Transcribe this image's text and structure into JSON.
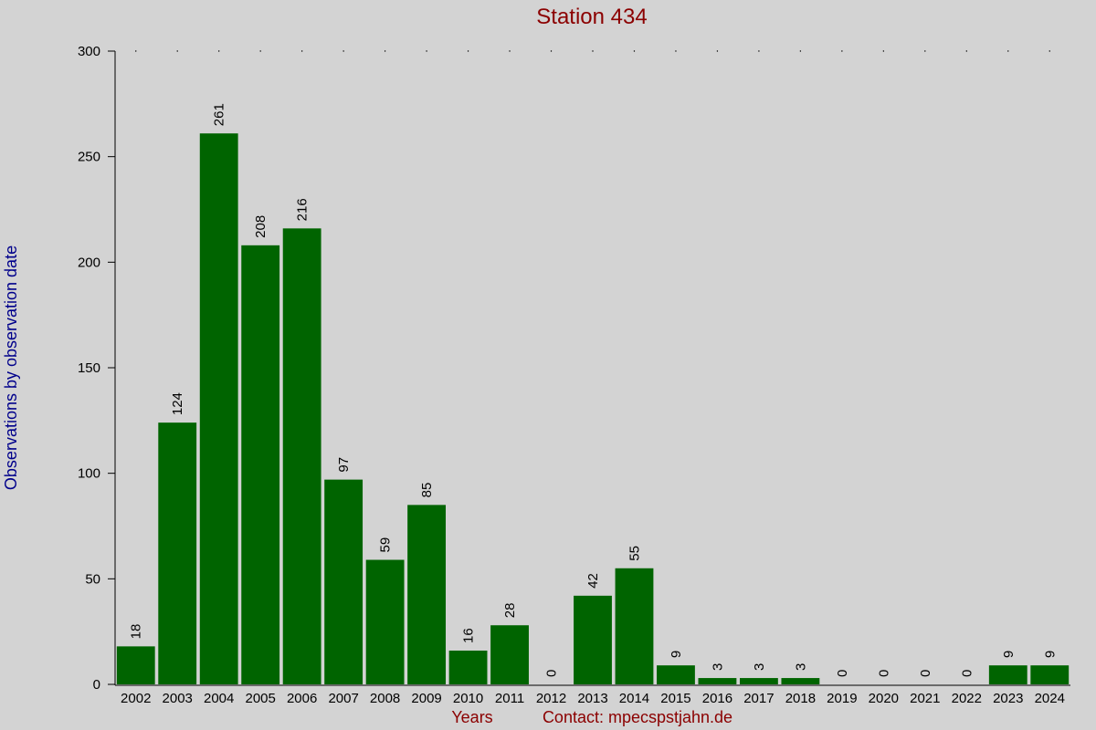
{
  "chart_data": {
    "type": "bar",
    "title": "Station 434",
    "xlabel": "Years",
    "annotation": "Contact: mpecspstjahn.de",
    "ylabel": "Observations by observation date",
    "categories": [
      "2002",
      "2003",
      "2004",
      "2005",
      "2006",
      "2007",
      "2008",
      "2009",
      "2010",
      "2011",
      "2012",
      "2013",
      "2014",
      "2015",
      "2016",
      "2017",
      "2018",
      "2019",
      "2020",
      "2021",
      "2022",
      "2023",
      "2024"
    ],
    "values": [
      18,
      124,
      261,
      208,
      216,
      97,
      59,
      85,
      16,
      28,
      0,
      42,
      55,
      9,
      3,
      3,
      3,
      0,
      0,
      0,
      0,
      9,
      9
    ],
    "color": "#006400",
    "ylim": [
      0,
      300
    ],
    "yticks": [
      0,
      50,
      100,
      150,
      200,
      250,
      300
    ]
  }
}
